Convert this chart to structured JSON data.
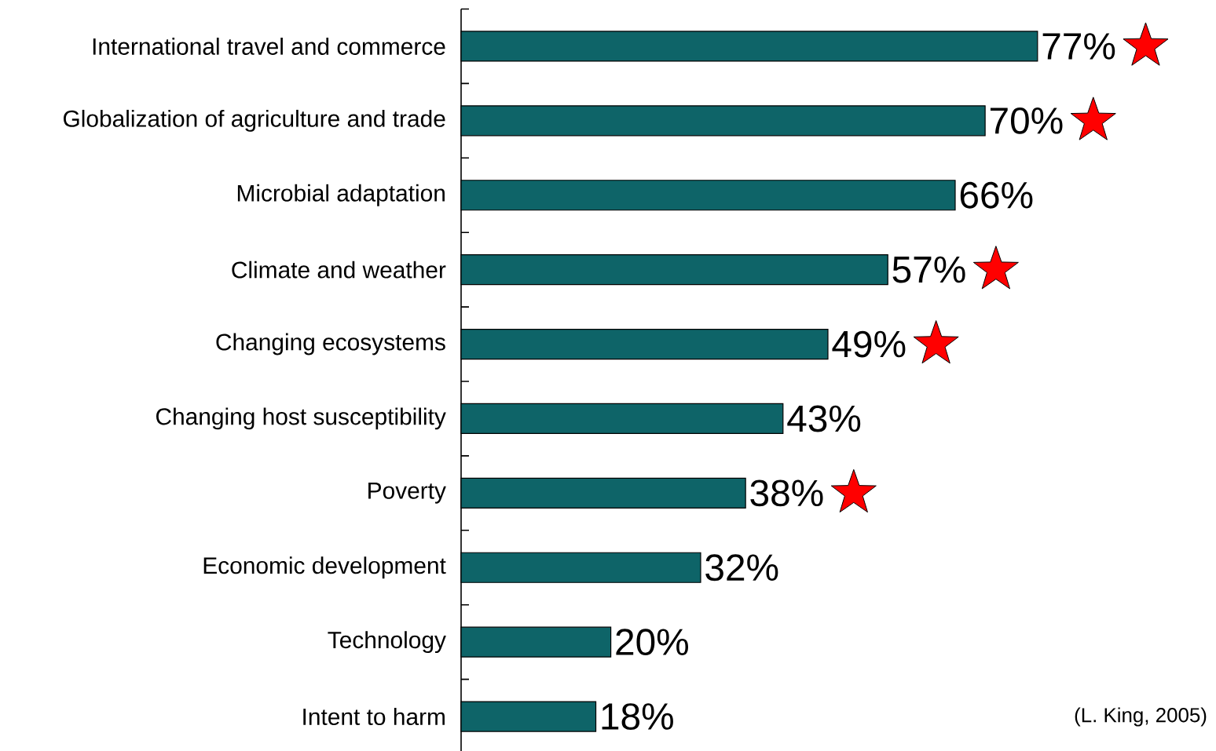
{
  "chart_data": {
    "type": "bar",
    "orientation": "horizontal",
    "categories": [
      "International travel and commerce",
      "Globalization of agriculture and trade",
      "Microbial adaptation",
      "Climate and weather",
      "Changing ecosystems",
      "Changing host susceptibility",
      "Poverty",
      "Economic development",
      "Technology",
      "Intent to harm"
    ],
    "values": [
      77,
      70,
      66,
      57,
      49,
      43,
      38,
      32,
      20,
      18
    ],
    "value_labels": [
      "77%",
      "70%",
      "66%",
      "57%",
      "49%",
      "43%",
      "38%",
      "32%",
      "20%",
      "18%"
    ],
    "color": "#0e6468",
    "annotations": [
      "(L. King, 2005)"
    ]
  }
}
